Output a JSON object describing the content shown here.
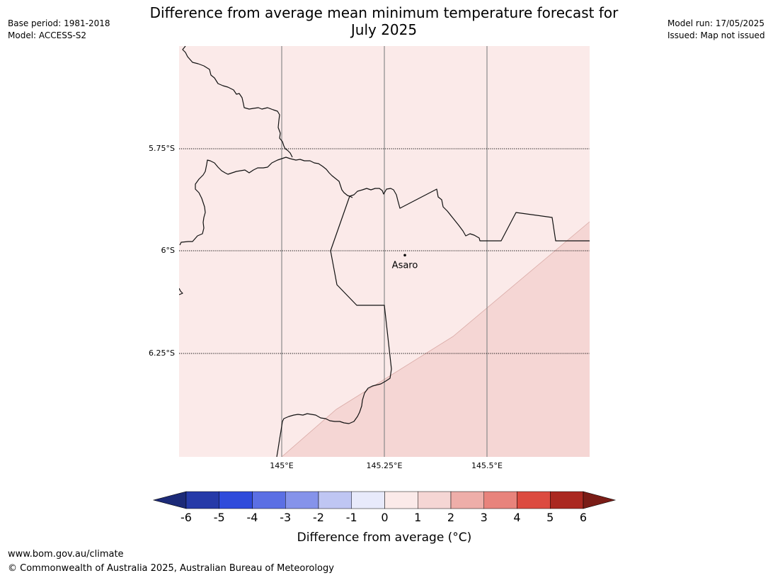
{
  "header": {
    "title_line1": "Difference from average mean minimum temperature forecast for",
    "title_line2": "July 2025",
    "base_period": "Base period: 1981-2018",
    "model": "Model: ACCESS-S2",
    "model_run": "Model run: 17/05/2025",
    "issued": "Issued: Map not issued"
  },
  "map": {
    "latitude_labels": [
      "5.75°S",
      "6°S",
      "6.25°S"
    ],
    "longitude_labels": [
      "145°E",
      "145.25°E",
      "145.5°E"
    ],
    "place": {
      "name": "Asaro",
      "lon": 145.3,
      "lat": -6.01
    },
    "fill_colors": {
      "zero_to_one": "#fbeae9",
      "one_to_two": "#f5d6d4"
    }
  },
  "legend": {
    "tick_labels": [
      "-6",
      "-5",
      "-4",
      "-3",
      "-2",
      "-1",
      "0",
      "1",
      "2",
      "3",
      "4",
      "5",
      "6"
    ],
    "colors": [
      "#263aa8",
      "#2f4bdb",
      "#5b6fe4",
      "#8593ea",
      "#bfc6f3",
      "#e8eafb",
      "#fbeae9",
      "#f5d6d4",
      "#eeaea9",
      "#e8837c",
      "#dc4b40",
      "#aa2820"
    ],
    "under_color": "#1c2a78",
    "over_color": "#7a1c16",
    "label": "Difference from average (°C)"
  },
  "footer": {
    "url": "www.bom.gov.au/climate",
    "copyright": "© Commonwealth of Australia 2025, Australian Bureau of Meteorology"
  }
}
